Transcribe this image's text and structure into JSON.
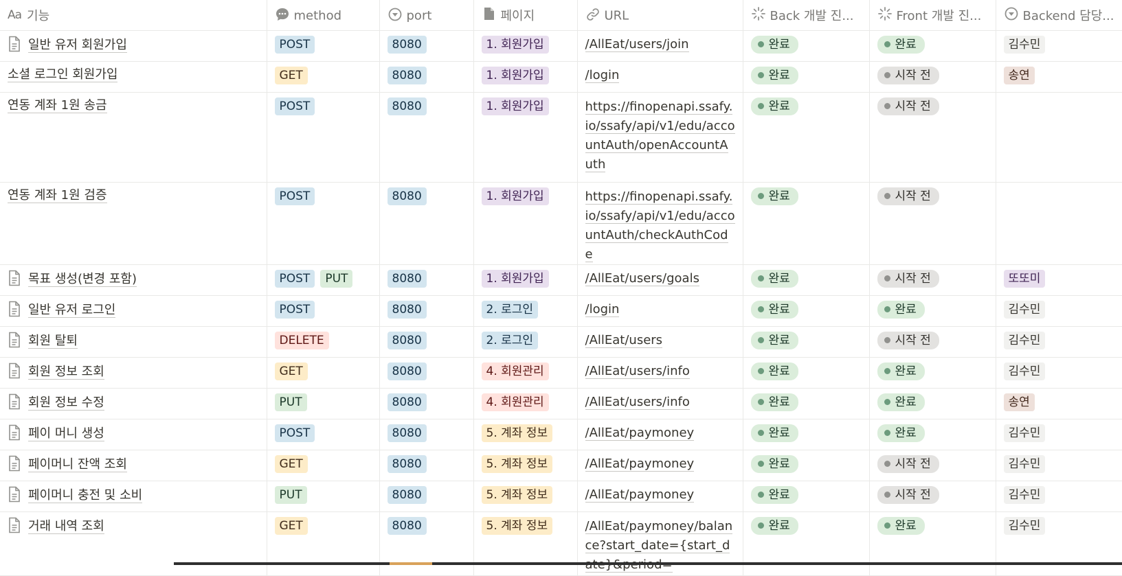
{
  "columns": {
    "name": "기능",
    "name_prefix": "Aa",
    "method": "method",
    "port": "port",
    "page": "페이지",
    "url": "URL",
    "back": "Back 개발 진...",
    "front": "Front 개발 진...",
    "owner": "Backend 담당..."
  },
  "icons": {
    "method": "comment-icon",
    "port": "select-circle-icon",
    "page": "document-icon",
    "url": "link-icon",
    "back": "progress-spinner-icon",
    "front": "progress-spinner-icon",
    "owner": "select-circle-icon"
  },
  "rows": [
    {
      "name": "일반 유저 회원가입",
      "doc": true,
      "methods": [
        {
          "label": "POST",
          "color": "blue"
        }
      ],
      "port": "8080",
      "page": {
        "label": "1. 회원가입",
        "color": "purple"
      },
      "url": "/AllEat/users/join",
      "back": "완료",
      "front": "완료",
      "owner": {
        "label": "김수민",
        "color": "lightgray"
      }
    },
    {
      "name": "소셜 로그인 회원가입",
      "doc": false,
      "methods": [
        {
          "label": "GET",
          "color": "yellow"
        }
      ],
      "port": "8080",
      "page": {
        "label": "1. 회원가입",
        "color": "purple"
      },
      "url": "/login",
      "back": "완료",
      "front": "시작 전",
      "owner": {
        "label": "송연",
        "color": "brown"
      }
    },
    {
      "name": "연동 계좌 1원 송금",
      "doc": false,
      "methods": [
        {
          "label": "POST",
          "color": "blue"
        }
      ],
      "port": "8080",
      "page": {
        "label": "1. 회원가입",
        "color": "purple"
      },
      "url": "https://finopenapi.ssafy.io/ssafy/api/v1/edu/accountAuth/openAccountAuth",
      "back": "완료",
      "front": "시작 전",
      "owner": null
    },
    {
      "name": "연동 계좌 1원 검증",
      "doc": false,
      "methods": [
        {
          "label": "POST",
          "color": "blue"
        }
      ],
      "port": "8080",
      "page": {
        "label": "1. 회원가입",
        "color": "purple"
      },
      "url": "https://finopenapi.ssafy.io/ssafy/api/v1/edu/accountAuth/checkAuthCode",
      "back": "완료",
      "front": "시작 전",
      "owner": null
    },
    {
      "name": "목표 생성(변경 포함)",
      "doc": true,
      "methods": [
        {
          "label": "POST",
          "color": "blue"
        },
        {
          "label": "PUT",
          "color": "green"
        }
      ],
      "port": "8080",
      "page": {
        "label": "1. 회원가입",
        "color": "purple"
      },
      "url": "/AllEat/users/goals",
      "back": "완료",
      "front": "시작 전",
      "owner": {
        "label": "또또미",
        "color": "purple"
      }
    },
    {
      "name": "일반 유저 로그인",
      "doc": true,
      "methods": [
        {
          "label": "POST",
          "color": "blue"
        }
      ],
      "port": "8080",
      "page": {
        "label": "2. 로그인",
        "color": "blue"
      },
      "url": "/login",
      "back": "완료",
      "front": "완료",
      "owner": {
        "label": "김수민",
        "color": "lightgray"
      }
    },
    {
      "name": "회원 탈퇴",
      "doc": true,
      "methods": [
        {
          "label": "DELETE",
          "color": "red"
        }
      ],
      "port": "8080",
      "page": {
        "label": "2. 로그인",
        "color": "blue"
      },
      "url": "/AllEat/users",
      "back": "완료",
      "front": "시작 전",
      "owner": {
        "label": "김수민",
        "color": "lightgray"
      }
    },
    {
      "name": "회원 정보 조회",
      "doc": true,
      "methods": [
        {
          "label": "GET",
          "color": "yellow"
        }
      ],
      "port": "8080",
      "page": {
        "label": "4. 회원관리",
        "color": "red"
      },
      "url": "/AllEat/users/info",
      "back": "완료",
      "front": "완료",
      "owner": {
        "label": "김수민",
        "color": "lightgray"
      }
    },
    {
      "name": "회원 정보 수정",
      "doc": true,
      "methods": [
        {
          "label": "PUT",
          "color": "green"
        }
      ],
      "port": "8080",
      "page": {
        "label": "4. 회원관리",
        "color": "red"
      },
      "url": "/AllEat/users/info",
      "back": "완료",
      "front": "완료",
      "owner": {
        "label": "송연",
        "color": "brown"
      }
    },
    {
      "name": "페이 머니 생성",
      "doc": true,
      "methods": [
        {
          "label": "POST",
          "color": "blue"
        }
      ],
      "port": "8080",
      "page": {
        "label": "5. 계좌 정보",
        "color": "yellow"
      },
      "url": "/AllEat/paymoney",
      "back": "완료",
      "front": "완료",
      "owner": {
        "label": "김수민",
        "color": "lightgray"
      }
    },
    {
      "name": "페이머니 잔액 조회",
      "doc": true,
      "methods": [
        {
          "label": "GET",
          "color": "yellow"
        }
      ],
      "port": "8080",
      "page": {
        "label": "5. 계좌 정보",
        "color": "yellow"
      },
      "url": "/AllEat/paymoney",
      "back": "완료",
      "front": "시작 전",
      "owner": {
        "label": "김수민",
        "color": "lightgray"
      }
    },
    {
      "name": "페이머니 충전 및 소비",
      "doc": true,
      "methods": [
        {
          "label": "PUT",
          "color": "green"
        }
      ],
      "port": "8080",
      "page": {
        "label": "5. 계좌 정보",
        "color": "yellow"
      },
      "url": "/AllEat/paymoney",
      "back": "완료",
      "front": "시작 전",
      "owner": {
        "label": "김수민",
        "color": "lightgray"
      }
    },
    {
      "name": "거래 내역 조회",
      "doc": true,
      "methods": [
        {
          "label": "GET",
          "color": "yellow"
        }
      ],
      "port": "8080",
      "page": {
        "label": "5. 계좌 정보",
        "color": "yellow"
      },
      "url": "/AllEat/paymoney/balance?start_date={start_date}&period=",
      "back": "완료",
      "front": "완료",
      "owner": {
        "label": "김수민",
        "color": "lightgray"
      }
    }
  ]
}
